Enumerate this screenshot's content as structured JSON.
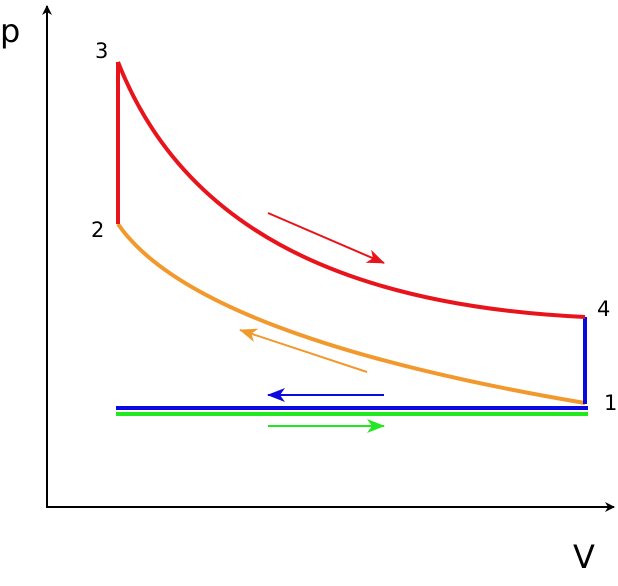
{
  "axes": {
    "y_label": "p",
    "x_label": "V"
  },
  "points": [
    {
      "label": "1"
    },
    {
      "label": "2"
    },
    {
      "label": "3"
    },
    {
      "label": "4"
    }
  ]
}
